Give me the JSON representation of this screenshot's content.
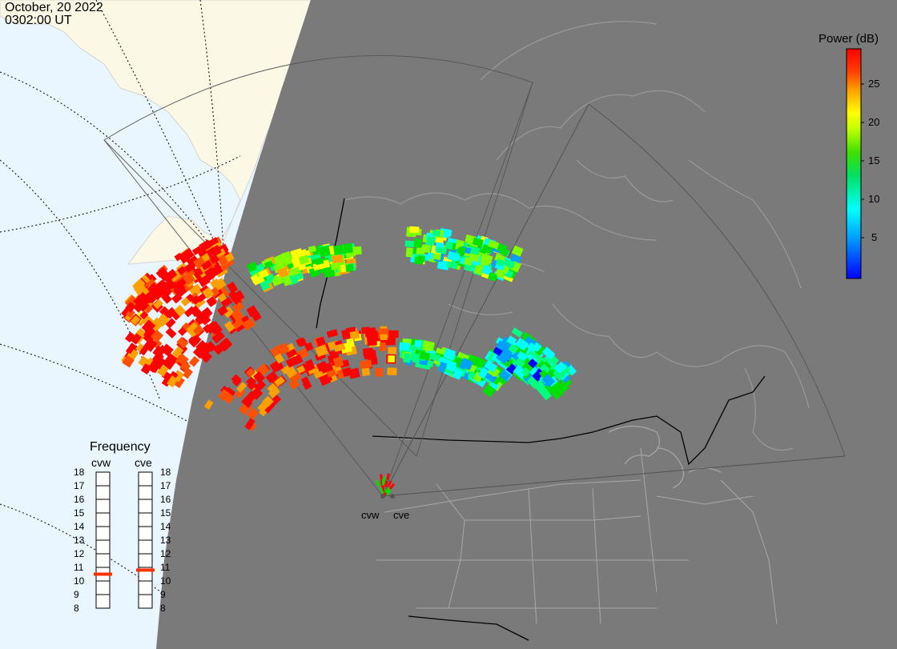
{
  "header": {
    "date": "October, 20 2022",
    "time": "0302:00 UT"
  },
  "colorbar": {
    "title": "Power (dB)",
    "ticks": [
      "25",
      "20",
      "15",
      "10",
      "5"
    ],
    "colors": [
      "#0000ff",
      "#00a0ff",
      "#00ffff",
      "#00ff80",
      "#00e000",
      "#80ff00",
      "#ffff00",
      "#ffa000",
      "#ff5000",
      "#ff0000"
    ]
  },
  "frequency_panel": {
    "title": "Frequency",
    "radars": [
      {
        "label": "cvw",
        "selected_mhz": 10.5
      },
      {
        "label": "cve",
        "selected_mhz": 10.8
      }
    ],
    "ticks": [
      "18",
      "17",
      "16",
      "15",
      "14",
      "13",
      "12",
      "11",
      "10",
      "9",
      "8"
    ],
    "selected_color": "#ff3300"
  },
  "map": {
    "night_color": "#7a7a7a",
    "day_color": "#eaf6ff",
    "land_day_color": "#fbf8e6",
    "radar_sites": [
      "cvw",
      "cve"
    ]
  }
}
